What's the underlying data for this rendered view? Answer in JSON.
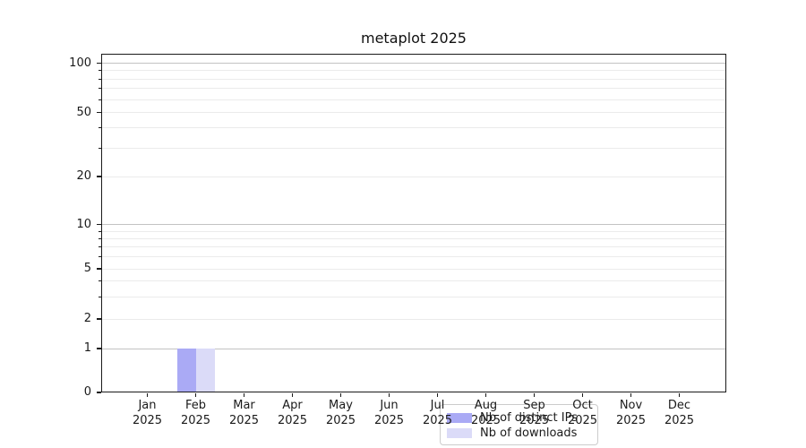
{
  "title": "metaplot 2025",
  "colors": {
    "distinct_ips": "#aaaaf5",
    "downloads": "#dbdbf8",
    "grid_major": "#c3c3c3",
    "grid_minor": "#ebebeb",
    "spine": "#1a1a1a",
    "background": "#ffffff"
  },
  "legend": {
    "items": [
      {
        "label": "Nb of distinct IPs",
        "color_key": "distinct_ips"
      },
      {
        "label": "Nb of downloads",
        "color_key": "downloads"
      }
    ]
  },
  "chart_data": {
    "type": "bar",
    "title": "metaplot 2025",
    "categories": [
      "Jan 2025",
      "Feb 2025",
      "Mar 2025",
      "Apr 2025",
      "May 2025",
      "Jun 2025",
      "Jul 2025",
      "Aug 2025",
      "Sep 2025",
      "Oct 2025",
      "Nov 2025",
      "Dec 2025"
    ],
    "series": [
      {
        "name": "Nb of distinct IPs",
        "color_key": "distinct_ips",
        "values": [
          0,
          1,
          0,
          0,
          0,
          0,
          0,
          0,
          0,
          0,
          0,
          0
        ]
      },
      {
        "name": "Nb of downloads",
        "color_key": "downloads",
        "values": [
          0,
          1,
          0,
          0,
          0,
          0,
          0,
          0,
          0,
          0,
          0,
          0
        ]
      }
    ],
    "xlabel": "",
    "ylabel": "",
    "yscale": "symlog",
    "ylim": [
      0,
      114
    ],
    "y_major_ticks": [
      0,
      1,
      2,
      5,
      10,
      20,
      50,
      100
    ],
    "y_minor_ticks": [
      3,
      4,
      6,
      7,
      8,
      9,
      30,
      40,
      60,
      70,
      80,
      90
    ],
    "grid": "horizontal",
    "legend_position": "lower center"
  }
}
